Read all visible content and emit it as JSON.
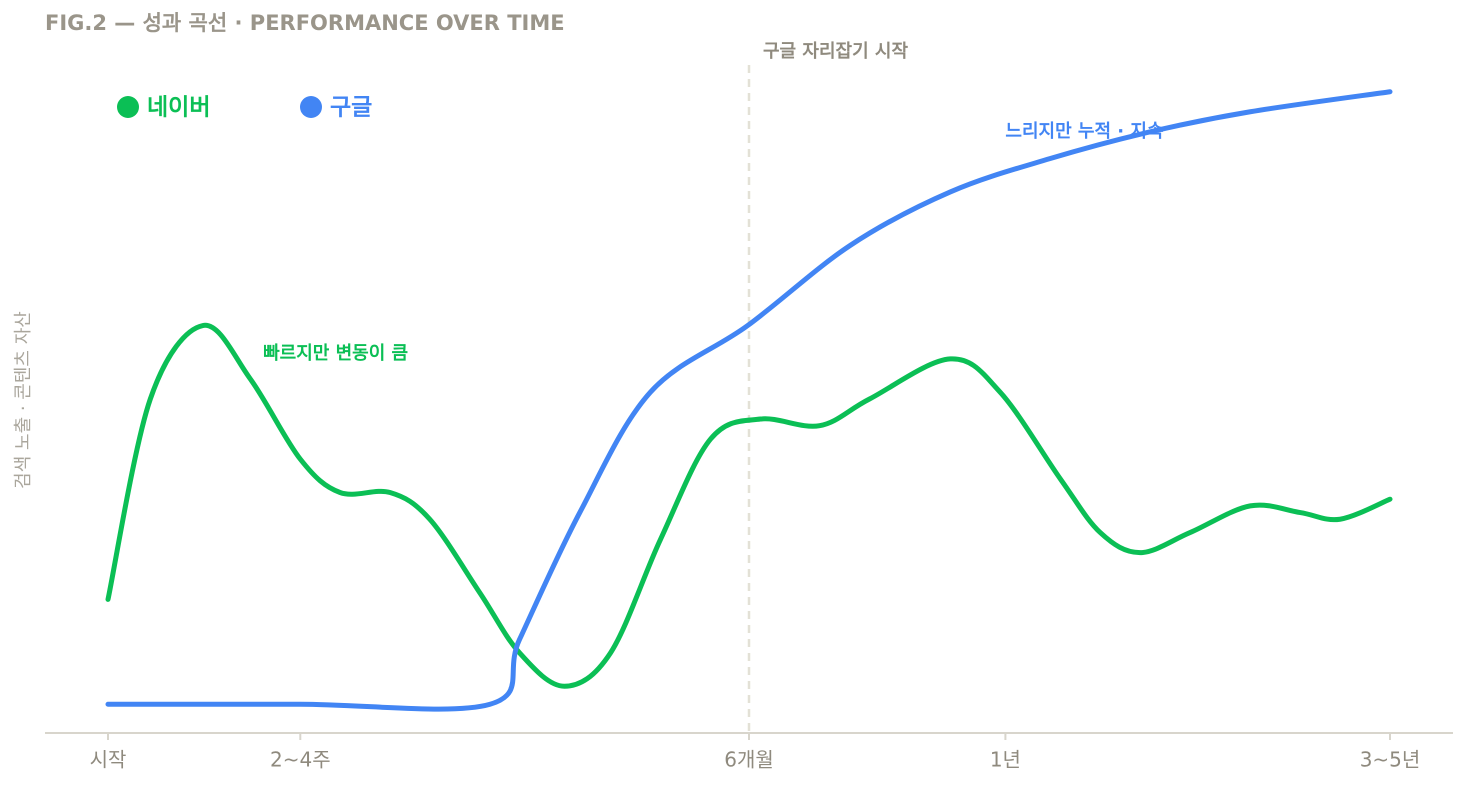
{
  "chart_data": {
    "type": "line",
    "title": "FIG.2 — 성과 곡선 · PERFORMANCE OVER TIME",
    "y_label": "검색 노출 · 콘텐츠 자산",
    "xlim": [
      0,
      100
    ],
    "ylim": [
      0,
      100
    ],
    "xticks": [
      {
        "value": 0,
        "label": "시작"
      },
      {
        "value": 15,
        "label": "2~4주"
      },
      {
        "value": 50,
        "label": "6개월"
      },
      {
        "value": 70,
        "label": "1년"
      },
      {
        "value": 100,
        "label": "3~5년"
      }
    ],
    "vline": {
      "x": 50,
      "label": "구글 자리잡기 시작"
    },
    "legend": "top-left",
    "series": [
      {
        "name": "네이버",
        "color": "#0bbf55",
        "x": [
          0,
          3.3,
          7.4,
          11.1,
          15,
          18.1,
          22,
          25.1,
          29,
          32.1,
          35.6,
          39.2,
          43.1,
          47,
          50.9,
          55.5,
          59.4,
          65.7,
          69.6,
          74.3,
          77.4,
          80.5,
          84.4,
          89.1,
          93,
          96.1,
          100
        ],
        "values": [
          20,
          50,
          61,
          53,
          41,
          36,
          36,
          32,
          21,
          12,
          7,
          12,
          29,
          44,
          47,
          46,
          50,
          56,
          51,
          38,
          30,
          27,
          30,
          34,
          33,
          32,
          35
        ]
      },
      {
        "name": "구글",
        "color": "#4285f4",
        "x": [
          0,
          15,
          29.8,
          32.1,
          36.8,
          42.3,
          49.9,
          57.9,
          65.7,
          73.5,
          81.3,
          89.1,
          100
        ],
        "values": [
          4.3,
          4.3,
          4.3,
          14,
          33,
          51,
          61,
          73,
          81,
          86,
          90,
          93,
          96
        ]
      }
    ],
    "annotations": [
      {
        "text": "빠르지만 변동이 큼",
        "x": 12.1,
        "y": 56.7,
        "color": "#0bbf55"
      },
      {
        "text": "느리지만 누적 · 지속",
        "x": 70,
        "y": 90,
        "color": "#4285f4"
      }
    ]
  }
}
